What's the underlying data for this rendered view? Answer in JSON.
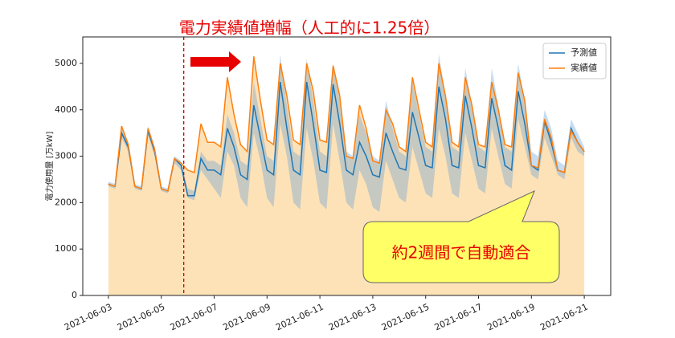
{
  "chart_data": {
    "type": "line",
    "title": "電力実績値増幅（人工的に1.25倍）",
    "ylabel": "電力使用量 [万kW]",
    "callout": "約2週間で自動適合",
    "vline_x": 5.85,
    "legend": "upper right",
    "x": [
      3,
      3.25,
      3.5,
      3.75,
      4,
      4.25,
      4.5,
      4.75,
      5,
      5.25,
      5.5,
      5.75,
      6,
      6.25,
      6.5,
      6.75,
      7,
      7.25,
      7.5,
      7.75,
      8,
      8.25,
      8.5,
      8.75,
      9,
      9.25,
      9.5,
      9.75,
      10,
      10.25,
      10.5,
      10.75,
      11,
      11.25,
      11.5,
      11.75,
      12,
      12.25,
      12.5,
      12.75,
      13,
      13.25,
      13.5,
      13.75,
      14,
      14.25,
      14.5,
      14.75,
      15,
      15.25,
      15.5,
      15.75,
      16,
      16.25,
      16.5,
      16.75,
      17,
      17.25,
      17.5,
      17.75,
      18,
      18.25,
      18.5,
      18.75,
      19,
      19.25,
      19.5,
      19.75,
      20,
      20.25,
      20.5,
      20.75,
      21
    ],
    "xlim": [
      2.03,
      22.0
    ],
    "xticks": [
      {
        "value": 3,
        "label": "2021-06-03"
      },
      {
        "value": 5,
        "label": "2021-06-05"
      },
      {
        "value": 7,
        "label": "2021-06-07"
      },
      {
        "value": 9,
        "label": "2021-06-09"
      },
      {
        "value": 11,
        "label": "2021-06-11"
      },
      {
        "value": 13,
        "label": "2021-06-13"
      },
      {
        "value": 15,
        "label": "2021-06-15"
      },
      {
        "value": 17,
        "label": "2021-06-17"
      },
      {
        "value": 19,
        "label": "2021-06-19"
      },
      {
        "value": 21,
        "label": "2021-06-21"
      }
    ],
    "ylim": [
      0,
      5570
    ],
    "yticks": [
      0,
      1000,
      2000,
      3000,
      4000,
      5000
    ],
    "series": [
      {
        "name": "予測値",
        "color": "#1f77b4",
        "values": [
          2400,
          2350,
          3500,
          3200,
          2350,
          2300,
          3550,
          3100,
          2300,
          2250,
          2950,
          2800,
          2150,
          2150,
          2950,
          2700,
          2700,
          2600,
          3600,
          3200,
          2600,
          2500,
          4100,
          3400,
          2700,
          2600,
          4600,
          3600,
          2700,
          2600,
          4600,
          3700,
          2700,
          2650,
          4550,
          3700,
          2700,
          2600,
          3300,
          3000,
          2600,
          2550,
          3500,
          3100,
          2750,
          2700,
          3950,
          3400,
          2800,
          2750,
          4500,
          3800,
          2800,
          2750,
          4300,
          3600,
          2800,
          2750,
          4250,
          3600,
          2800,
          2700,
          4400,
          3700,
          2800,
          2700,
          3750,
          3300,
          2700,
          2650,
          3600,
          3300,
          3100
        ]
      },
      {
        "name": "実績値",
        "color": "#ff7f0e",
        "fill": "#fde2b8",
        "values": [
          2400,
          2350,
          3650,
          3250,
          2350,
          2300,
          3600,
          3150,
          2300,
          2250,
          2950,
          2850,
          2700,
          2650,
          3700,
          3300,
          3300,
          3200,
          4700,
          3900,
          3250,
          3100,
          5150,
          4200,
          3350,
          3250,
          5000,
          4300,
          3350,
          3250,
          5000,
          4400,
          3350,
          3300,
          4950,
          4300,
          3000,
          2950,
          4100,
          3600,
          2900,
          2850,
          4000,
          3700,
          3200,
          3100,
          4700,
          4000,
          3300,
          3200,
          5000,
          4300,
          3300,
          3200,
          4700,
          4100,
          3250,
          3200,
          4600,
          4000,
          3250,
          3200,
          4800,
          4200,
          2800,
          2750,
          3800,
          3400,
          2700,
          2650,
          3550,
          3300,
          3100
        ]
      }
    ],
    "band": {
      "color": "#5b9bd5",
      "upper": [
        2450,
        2400,
        3600,
        3300,
        2400,
        2350,
        3650,
        3200,
        2350,
        2300,
        3000,
        2900,
        2300,
        2250,
        3100,
        2900,
        2900,
        2800,
        3900,
        3500,
        2900,
        2800,
        4600,
        3800,
        3000,
        2900,
        5200,
        4100,
        3100,
        3000,
        5100,
        4200,
        3100,
        3000,
        5000,
        4200,
        3100,
        3000,
        3900,
        3500,
        3000,
        2900,
        4200,
        3600,
        3100,
        3000,
        4600,
        3900,
        3200,
        3100,
        5200,
        4300,
        3200,
        3100,
        4900,
        4100,
        3200,
        3100,
        4900,
        4100,
        3200,
        3100,
        5000,
        4200,
        3100,
        3000,
        4000,
        3600,
        2900,
        2800,
        3800,
        3500,
        3200
      ],
      "lower": [
        2350,
        2300,
        3400,
        3100,
        2300,
        2250,
        3450,
        3000,
        2250,
        2200,
        2850,
        2700,
        2100,
        2050,
        2700,
        2500,
        2300,
        2100,
        3100,
        2800,
        2100,
        1900,
        3500,
        2900,
        2100,
        1900,
        3700,
        3000,
        2000,
        1850,
        3600,
        2900,
        2000,
        1850,
        3700,
        2900,
        2000,
        1850,
        2700,
        2400,
        1900,
        1800,
        2900,
        2500,
        2100,
        2000,
        3200,
        2700,
        2200,
        2100,
        3600,
        3000,
        2200,
        2100,
        3500,
        2900,
        2300,
        2200,
        3600,
        3000,
        2400,
        2300,
        3800,
        3200,
        2600,
        2500,
        3400,
        3000,
        2600,
        2500,
        3400,
        3100,
        3000
      ]
    }
  }
}
